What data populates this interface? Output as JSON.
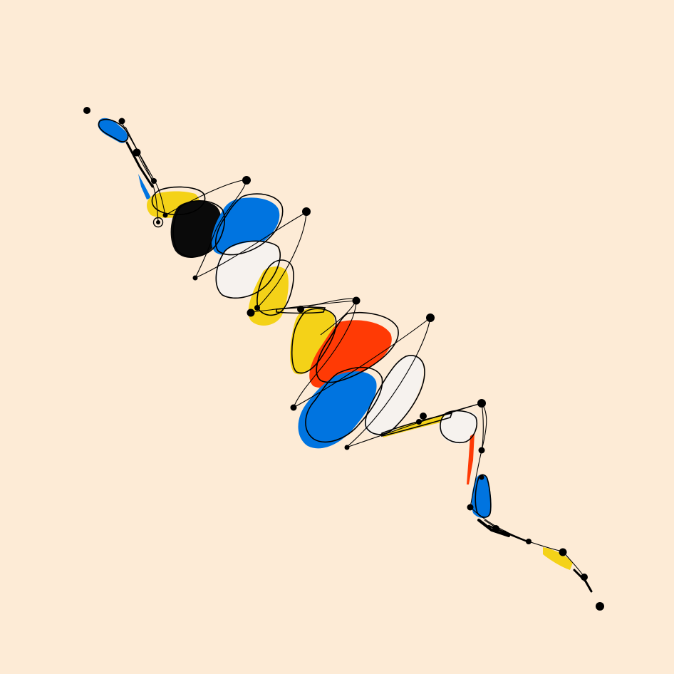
{
  "artwork": {
    "background": "#fdebd6",
    "palette": {
      "blue": "#0074e0",
      "yellow": "#f4d218",
      "red": "#ff3a05",
      "black": "#0a0a0a",
      "white": "#f6f2ee",
      "ink": "#000000"
    },
    "shape_fill_sequence": [
      "blue",
      "blue",
      "yellow",
      "black",
      "blue",
      "white",
      "yellow",
      "yellow",
      "red",
      "blue",
      "white",
      "yellow",
      "white",
      "red",
      "blue",
      "yellow"
    ],
    "marker_count": 27,
    "marker_style": "filled-dot",
    "target_marker_count": 1
  }
}
